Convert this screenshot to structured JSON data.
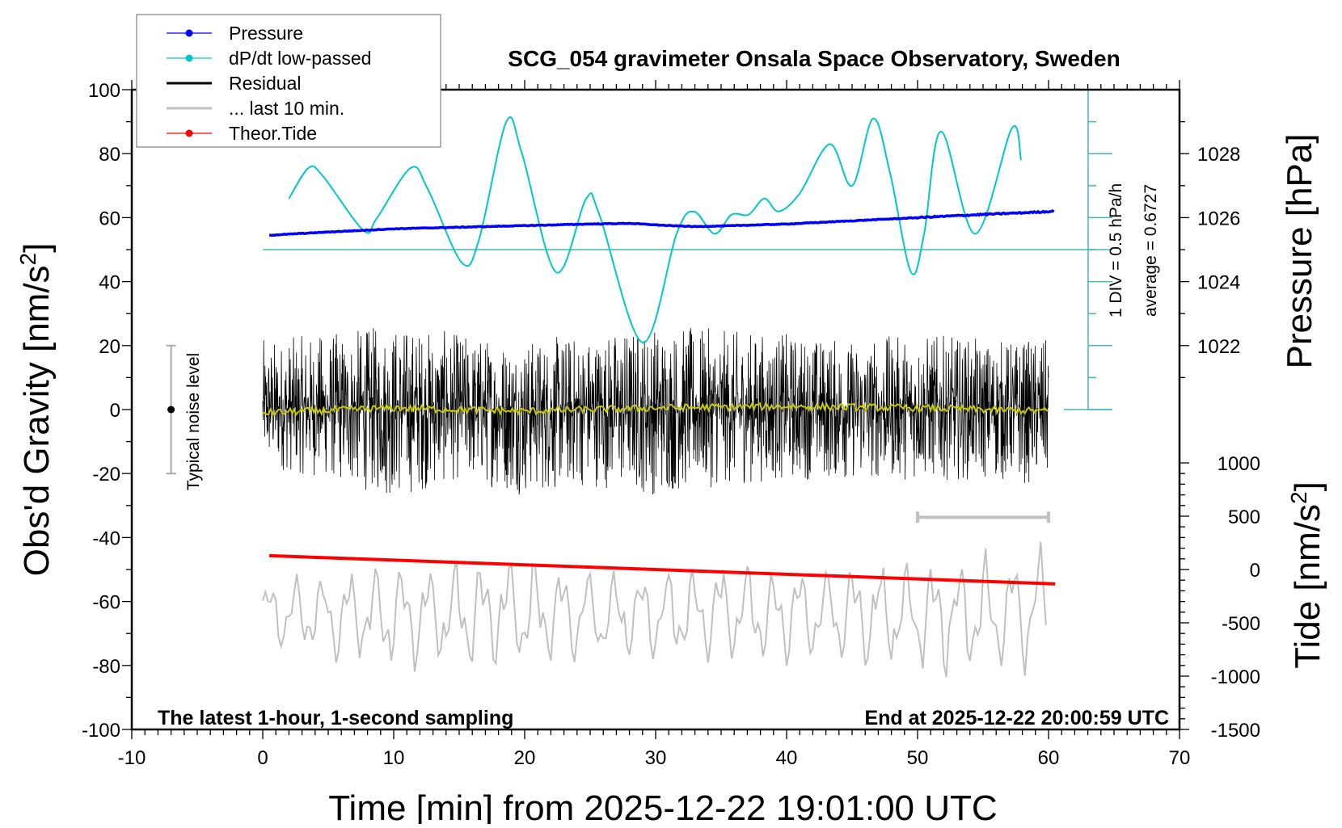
{
  "chart_data": {
    "type": "line",
    "title": "SCG_054 gravimeter Onsala Space Observatory, Sweden",
    "xlabel": "Time [min] from 2025-12-22 19:01:00 UTC",
    "ylabel_left": "Obs'd Gravity [nm/s",
    "ylabel_left_sup": "2",
    "ylabel_left_end": "]",
    "ylabel_right_pressure": "Pressure [hPa]",
    "ylabel_right_tide": "Tide [nm/s",
    "ylabel_right_tide_sup": "2",
    "ylabel_right_tide_end": "]",
    "xlim": [
      -10,
      70
    ],
    "ylim": [
      -100,
      100
    ],
    "pressure_lim": [
      1010,
      1030
    ],
    "tide_lim": [
      -1500,
      4500
    ],
    "xticks": [
      "-10",
      "0",
      "10",
      "20",
      "30",
      "40",
      "50",
      "60",
      "70"
    ],
    "yticks": [
      "-100",
      "-80",
      "-60",
      "-40",
      "-20",
      "0",
      "20",
      "40",
      "60",
      "80",
      "100"
    ],
    "pressure_ticks": [
      "1022",
      "1024",
      "1026",
      "1028"
    ],
    "tide_ticks": [
      "-1500",
      "-1000",
      "-500",
      "0",
      "500",
      "1000"
    ],
    "annotation_left": "The latest 1-hour, 1-second sampling",
    "annotation_right": "End at 2025-12-22 20:00:59 UTC",
    "dpdt_scale": "1 DIV = 0.5 hPa/h",
    "dpdt_average": "average = 0.6727",
    "dpdt_average_value": 0.6727,
    "dpdt_div": 0.5,
    "noise_label": "Typical noise level",
    "noise_level": {
      "t": -7,
      "center": 0,
      "half_range": 20
    },
    "legend": {
      "placement": "top-left",
      "entries": [
        {
          "label": "Pressure",
          "color": "#0000ff",
          "marker": true
        },
        {
          "label": "dP/dt low-passed",
          "color": "#00c8c8",
          "marker": true
        },
        {
          "label": "Residual",
          "color": "#000000",
          "marker": false
        },
        {
          "label": "... last 10 min.",
          "color": "#c0c0c0",
          "marker": false
        },
        {
          "label": "Theor.Tide",
          "color": "#ff0000",
          "marker": true
        }
      ]
    },
    "series": [
      {
        "name": "Pressure",
        "axis": "pressure_hPa",
        "color": "#0000ff",
        "t": [
          0.5,
          5,
          10,
          15,
          20,
          25,
          28,
          31,
          33,
          36,
          40,
          45,
          50,
          55,
          58,
          60.5
        ],
        "values": [
          1025.45,
          1025.55,
          1025.65,
          1025.7,
          1025.75,
          1025.8,
          1025.82,
          1025.75,
          1025.72,
          1025.75,
          1025.8,
          1025.9,
          1026.0,
          1026.1,
          1026.15,
          1026.2
        ]
      },
      {
        "name": "dP/dt low-passed",
        "axis": "hPa_per_h",
        "color": "#00c8c8",
        "t": [
          2.0,
          3.5,
          4.6,
          7.7,
          8.7,
          11.3,
          12.6,
          15.2,
          16.5,
          18.6,
          19.8,
          22.4,
          24.7,
          25.7,
          29.0,
          31.6,
          32.9,
          34.5,
          35.8,
          37.1,
          38.3,
          39.4,
          41.0,
          43.3,
          45.0,
          46.6,
          47.9,
          49.5,
          50.5,
          51.8,
          54.4,
          57.2,
          57.9
        ],
        "values": [
          1.47,
          1.95,
          1.82,
          0.97,
          1.16,
          1.95,
          1.62,
          0.47,
          0.82,
          2.67,
          2.17,
          0.32,
          1.47,
          1.22,
          -0.78,
          0.92,
          1.27,
          0.92,
          1.22,
          1.22,
          1.47,
          1.27,
          1.55,
          2.32,
          1.67,
          2.72,
          1.87,
          0.32,
          0.92,
          2.52,
          0.92,
          2.57,
          2.07
        ]
      },
      {
        "name": "Residual",
        "axis": "gravity_nm_s2",
        "color": "#000000",
        "t": [
          0,
          5,
          10,
          15,
          20,
          25,
          30,
          35,
          40,
          45,
          50,
          55,
          60
        ],
        "max": [
          22,
          24,
          27,
          24,
          22,
          24,
          27,
          25,
          24,
          22,
          24,
          22,
          22
        ],
        "min": [
          -18,
          -22,
          -28,
          -22,
          -27,
          -24,
          -27,
          -24,
          -22,
          -22,
          -22,
          -22,
          -24
        ]
      },
      {
        "name": "Residual smoothed",
        "axis": "gravity_nm_s2",
        "color": "#c8c800",
        "t": [
          0,
          10,
          20,
          30,
          40,
          50,
          60
        ],
        "values": [
          -1,
          0.5,
          -0.5,
          0.5,
          1,
          0.5,
          -0.5
        ]
      },
      {
        "name": "... last 10 min.",
        "axis": "tide_nm_s2",
        "color": "#c0c0c0",
        "t": [
          0,
          10,
          20,
          30,
          40,
          50,
          60
        ],
        "center": [
          -420,
          -420,
          -420,
          -420,
          -420,
          -420,
          -400
        ],
        "amplitude": [
          350,
          500,
          520,
          450,
          480,
          520,
          650
        ]
      },
      {
        "name": "Theor.Tide",
        "axis": "tide_nm_s2",
        "color": "#ff0000",
        "t": [
          0.5,
          60.5
        ],
        "values": [
          130,
          -135
        ]
      }
    ],
    "last10_bar": {
      "t": [
        50,
        60
      ],
      "tide": 490,
      "color": "#c0c0c0"
    },
    "grid": false
  }
}
